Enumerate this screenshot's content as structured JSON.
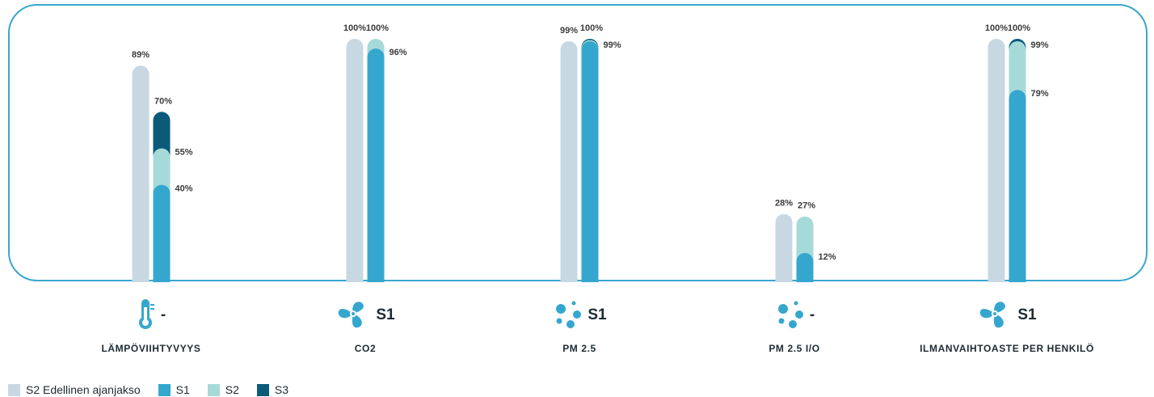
{
  "chart_data": {
    "type": "bar",
    "ylim": [
      0,
      100
    ],
    "categories": [
      {
        "name": "LÄMPÖVIIHTYVYYS",
        "icon": "thermometer-icon",
        "rating": "-",
        "previous": 89,
        "s1": 40,
        "s2": 55,
        "s3": 70,
        "labels": {
          "previous": "89%",
          "s1": "40%",
          "s2": "55%",
          "s3": "70%"
        }
      },
      {
        "name": "CO2",
        "icon": "fan-icon",
        "rating": "S1",
        "previous": 100,
        "s1": 96,
        "s2": 100,
        "s3": null,
        "labels": {
          "previous": "100%",
          "s1": "96%",
          "s2": "100%"
        }
      },
      {
        "name": "PM 2.5",
        "icon": "particles-icon",
        "rating": "S1",
        "previous": 99,
        "s1": 99,
        "s2": 99.5,
        "s3": 100,
        "labels": {
          "previous": "99%",
          "s1": "99%",
          "s3": "100%"
        }
      },
      {
        "name": "PM 2.5 I/O",
        "icon": "particles-icon",
        "rating": "-",
        "previous": 28,
        "s1": 12,
        "s2": 27,
        "s3": null,
        "labels": {
          "previous": "28%",
          "s1": "12%",
          "s2": "27%"
        }
      },
      {
        "name": "ILMANVAIHTOASTE PER HENKILÖ",
        "icon": "fan-icon",
        "rating": "S1",
        "previous": 100,
        "s1": 79,
        "s2": 99,
        "s3": 100,
        "labels": {
          "previous": "100%",
          "s1": "79%",
          "s2": "99%",
          "s3": "100%"
        }
      }
    ],
    "legend": [
      {
        "key": "previous",
        "label": "S2 Edellinen ajanjakso",
        "color": "#c8d8e2"
      },
      {
        "key": "s1",
        "label": "S1",
        "color": "#35a7cf"
      },
      {
        "key": "s2",
        "label": "S2",
        "color": "#a6dad9"
      },
      {
        "key": "s3",
        "label": "S3",
        "color": "#0b5a7a"
      }
    ],
    "grid": false,
    "legend_position": "bottom-left"
  }
}
